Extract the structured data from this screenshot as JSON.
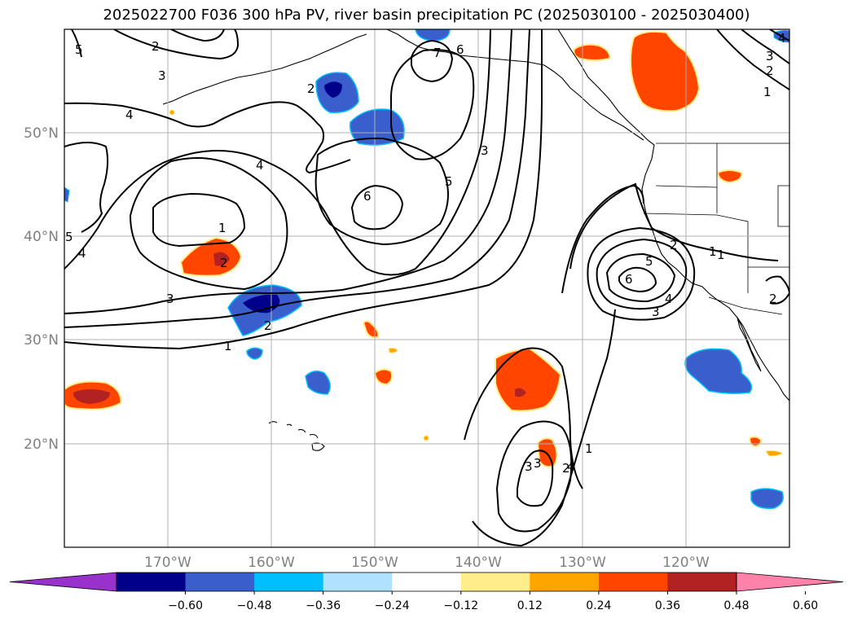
{
  "title": "2025022700 F036 300 hPa PV, river basin precipitation PC (2025030100 - 2025030400)",
  "lat_labels": [
    "50°N",
    "40°N",
    "30°N",
    "20°N"
  ],
  "lon_labels": [
    "170°W",
    "160°W",
    "150°W",
    "140°W",
    "130°W",
    "120°W"
  ],
  "colorbar": {
    "tick_labels": [
      "−0.60",
      "−0.48",
      "−0.36",
      "−0.24",
      "−0.12",
      "0.12",
      "0.24",
      "0.36",
      "0.48",
      "0.60"
    ],
    "colors": [
      "#9932cc",
      "#00008b",
      "#3a5fcd",
      "#00bfff",
      "#b0e2ff",
      "#ffffff",
      "#ffec8b",
      "#ffa500",
      "#ff4500",
      "#b22222",
      "#ff82ab"
    ]
  },
  "contour_labels": [
    "5",
    "2",
    "3",
    "4",
    "7",
    "6",
    "2",
    "4",
    "3",
    "1",
    "4",
    "6",
    "5",
    "3",
    "1",
    "2",
    "3",
    "5",
    "4",
    "2",
    "1",
    "2",
    "1",
    "5",
    "6",
    "4",
    "3",
    "2",
    "3",
    "2",
    "1",
    "1",
    "2",
    "3",
    "4"
  ]
}
